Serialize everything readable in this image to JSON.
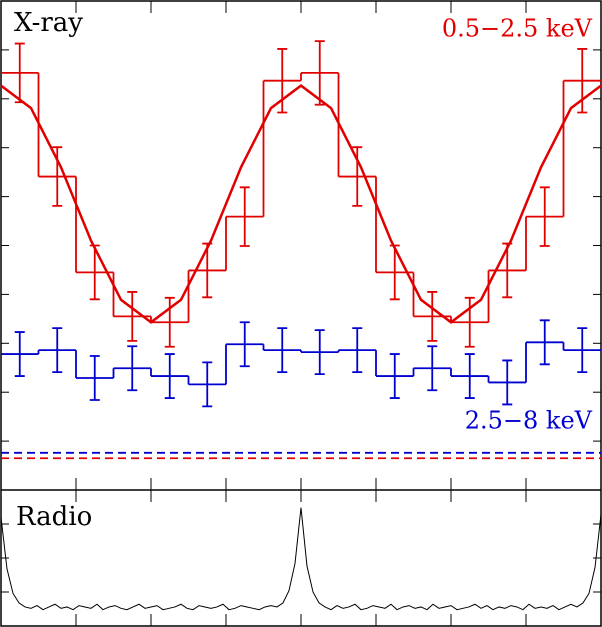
{
  "chart_data": [
    {
      "type": "step",
      "title": "X-ray",
      "xlim": [
        0,
        2
      ],
      "ylim": [
        0,
        100
      ],
      "xticks": [
        0,
        0.25,
        0.5,
        0.75,
        1,
        1.25,
        1.5,
        1.75,
        2
      ],
      "yticks": [
        0,
        10,
        20,
        30,
        40,
        50,
        60,
        70,
        80,
        90,
        100
      ],
      "series": [
        {
          "name": "0.5−2.5 keV",
          "color": "#e00000",
          "style": "step",
          "bins": [
            0,
            0.125,
            0.25,
            0.375,
            0.5,
            0.625,
            0.75,
            0.875,
            1,
            1.125,
            1.25,
            1.375,
            1.5,
            1.625,
            1.75,
            1.875,
            2
          ],
          "values": [
            85.3,
            64.1,
            44.5,
            35.5,
            34.3,
            44.9,
            55.9,
            83.7,
            85.3,
            64.1,
            44.5,
            35.5,
            34.3,
            44.9,
            55.9,
            83.7
          ],
          "errors": [
            6,
            6,
            5.5,
            5,
            5,
            5.5,
            6,
            6.5,
            6.5,
            6,
            5.5,
            5,
            5,
            5.5,
            6,
            6.5
          ]
        },
        {
          "color": "#e00000",
          "style": "line",
          "x": [
            0,
            0.1,
            0.2,
            0.3,
            0.4,
            0.5,
            0.6,
            0.7,
            0.8,
            0.9,
            1,
            1.1,
            1.2,
            1.3,
            1.4,
            1.5,
            1.6,
            1.7,
            1.8,
            1.9,
            2
          ],
          "values": [
            82.7,
            78.1,
            66.0,
            51.0,
            38.9,
            34.3,
            38.9,
            51.0,
            66.0,
            78.1,
            82.7,
            78.1,
            66.0,
            51.0,
            38.9,
            34.3,
            38.9,
            51.0,
            66.0,
            78.1,
            82.7
          ]
        },
        {
          "name": "2.5−8 keV",
          "color": "#0000d0",
          "style": "step",
          "bins": [
            0,
            0.125,
            0.25,
            0.375,
            0.5,
            0.625,
            0.75,
            0.875,
            1,
            1.125,
            1.25,
            1.375,
            1.5,
            1.625,
            1.75,
            1.875,
            2
          ],
          "values": [
            27.8,
            28.6,
            22.9,
            24.9,
            23.3,
            21.6,
            29.8,
            28.6,
            28.2,
            28.6,
            23.3,
            24.9,
            23.3,
            22.0,
            30.2,
            28.6
          ],
          "errors": [
            4.5,
            4.5,
            4.5,
            4.5,
            4.5,
            4.5,
            4.5,
            4.5,
            4.5,
            4.5,
            4.5,
            4.5,
            4.5,
            4.5,
            4.5,
            4.5
          ]
        },
        {
          "color": "#e00000",
          "style": "hline",
          "values": [
            6.5
          ]
        },
        {
          "color": "#0000d0",
          "style": "hline",
          "values": [
            7.6
          ]
        }
      ]
    },
    {
      "type": "line",
      "title": "Radio",
      "xlim": [
        0,
        2
      ],
      "ylim": [
        0,
        100
      ],
      "xticks": [
        0,
        0.25,
        0.5,
        0.75,
        1,
        1.25,
        1.5,
        1.75,
        2
      ],
      "yticks": [
        0,
        25,
        50,
        75,
        100
      ],
      "series": [
        {
          "color": "#000000",
          "x": [
            0,
            0.02,
            0.04,
            0.06,
            0.08,
            0.1,
            0.12,
            0.14,
            0.16,
            0.18,
            0.2,
            0.22,
            0.24,
            0.26,
            0.28,
            0.3,
            0.32,
            0.34,
            0.36,
            0.38,
            0.4,
            0.42,
            0.44,
            0.46,
            0.48,
            0.5,
            0.52,
            0.54,
            0.56,
            0.58,
            0.6,
            0.62,
            0.64,
            0.66,
            0.68,
            0.7,
            0.72,
            0.74,
            0.76,
            0.78,
            0.8,
            0.82,
            0.84,
            0.86,
            0.88,
            0.9,
            0.92,
            0.94,
            0.96,
            0.98,
            1,
            1.02,
            1.04,
            1.06,
            1.08,
            1.1,
            1.12,
            1.14,
            1.16,
            1.18,
            1.2,
            1.22,
            1.24,
            1.26,
            1.28,
            1.3,
            1.32,
            1.34,
            1.36,
            1.38,
            1.4,
            1.42,
            1.44,
            1.46,
            1.48,
            1.5,
            1.52,
            1.54,
            1.56,
            1.58,
            1.6,
            1.62,
            1.64,
            1.66,
            1.68,
            1.7,
            1.72,
            1.74,
            1.76,
            1.78,
            1.8,
            1.82,
            1.84,
            1.86,
            1.88,
            1.9,
            1.92,
            1.94,
            1.96,
            1.98,
            2
          ],
          "values": [
            80,
            42,
            24,
            17,
            14,
            13,
            15,
            12,
            14,
            16,
            13,
            14,
            12,
            15,
            14,
            13,
            16,
            12,
            14,
            15,
            13,
            12,
            14,
            16,
            13,
            14,
            15,
            12,
            13,
            14,
            16,
            13,
            12,
            15,
            14,
            13,
            14,
            16,
            12,
            13,
            15,
            14,
            13,
            12,
            14,
            15,
            14,
            17,
            26,
            46,
            87,
            44,
            25,
            17,
            14,
            12,
            15,
            13,
            14,
            16,
            12,
            13,
            15,
            14,
            13,
            16,
            12,
            14,
            15,
            13,
            14,
            12,
            16,
            13,
            14,
            15,
            12,
            13,
            14,
            16,
            13,
            15,
            12,
            14,
            13,
            15,
            14,
            12,
            16,
            13,
            14,
            13,
            15,
            12,
            14,
            16,
            14,
            17,
            24,
            43,
            82
          ]
        }
      ]
    }
  ]
}
